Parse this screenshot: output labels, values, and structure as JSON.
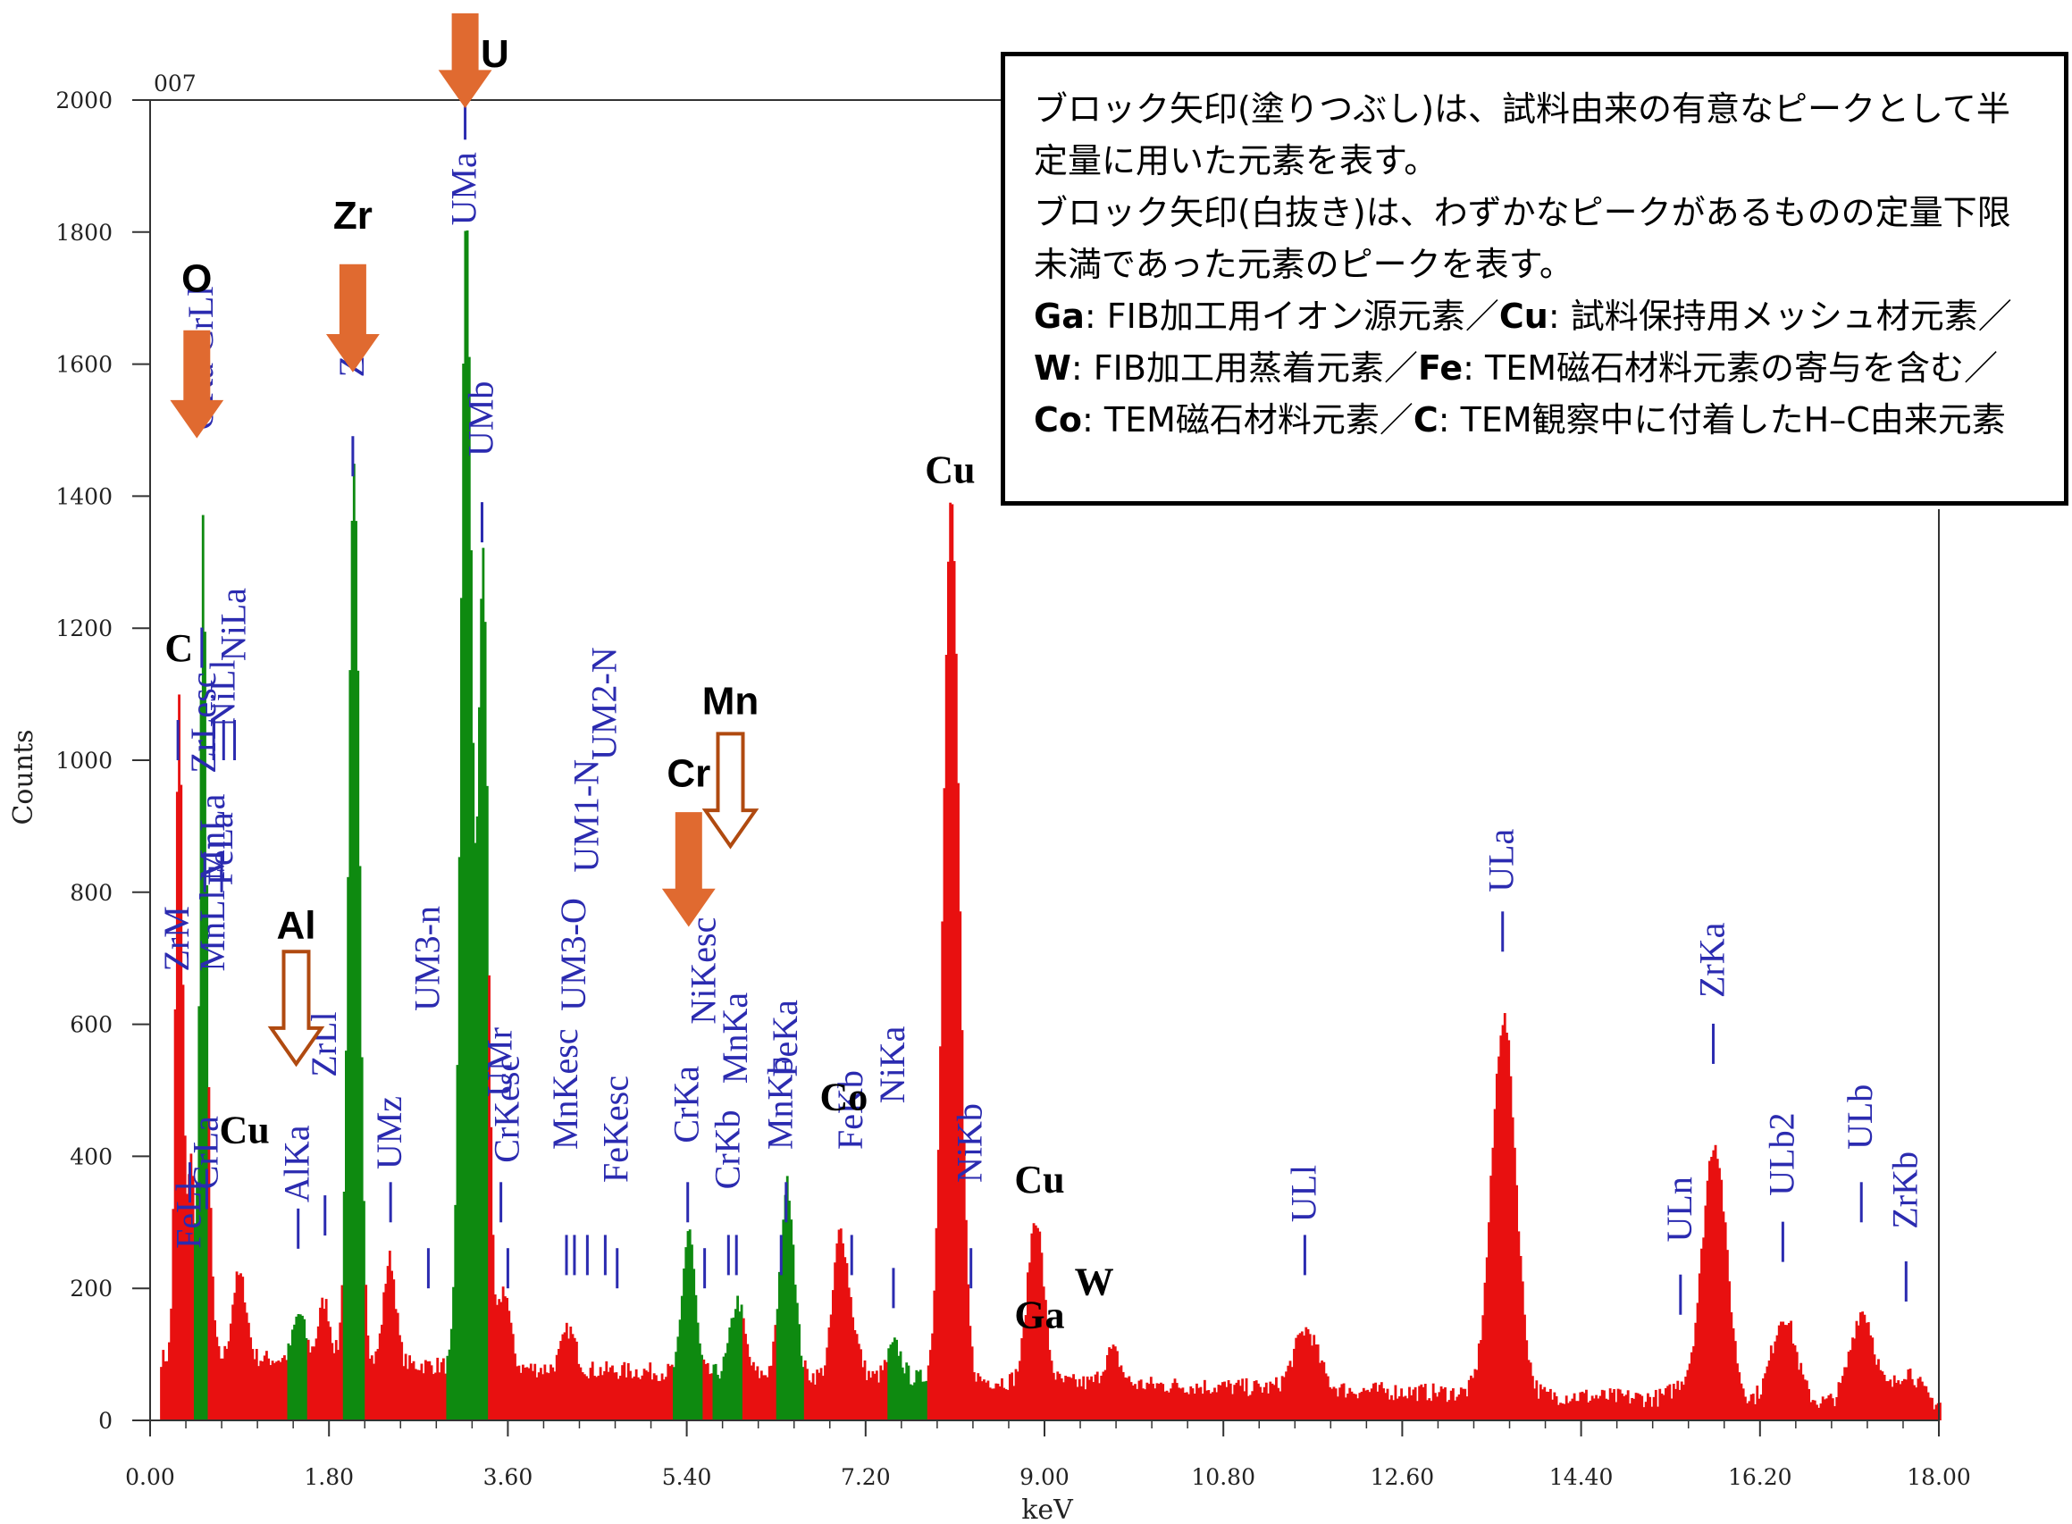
{
  "chart_data": {
    "type": "bar",
    "title": "007",
    "xlabel": "keV",
    "ylabel": "Counts",
    "xlim": [
      0,
      18
    ],
    "ylim": [
      0,
      2000
    ],
    "x_ticks": [
      "0.00",
      "1.80",
      "3.60",
      "5.40",
      "7.20",
      "9.00",
      "10.80",
      "12.60",
      "14.40",
      "16.20",
      "18.00"
    ],
    "y_ticks": [
      "0",
      "200",
      "400",
      "600",
      "800",
      "1000",
      "1200",
      "1400",
      "1600",
      "1800",
      "2000"
    ],
    "colors": {
      "spectrum": "#e81010",
      "roi": "#0e8a10",
      "line_marker": "#2b2bb0",
      "arrow": "#e06a30",
      "arrow_outline": "#b04a10"
    },
    "peaks": [
      {
        "x": 0.28,
        "y": 1000,
        "w": 0.035
      },
      {
        "x": 0.4,
        "y": 300,
        "w": 0.04
      },
      {
        "x": 0.52,
        "y": 1150,
        "w": 0.03
      },
      {
        "x": 0.57,
        "y": 250,
        "w": 0.04
      },
      {
        "x": 0.85,
        "y": 90,
        "w": 0.05
      },
      {
        "x": 0.93,
        "y": 80,
        "w": 0.05
      },
      {
        "x": 1.49,
        "y": 70,
        "w": 0.06
      },
      {
        "x": 1.74,
        "y": 90,
        "w": 0.06
      },
      {
        "x": 2.04,
        "y": 1350,
        "w": 0.055
      },
      {
        "x": 2.4,
        "y": 160,
        "w": 0.06
      },
      {
        "x": 3.17,
        "y": 1750,
        "w": 0.055
      },
      {
        "x": 3.34,
        "y": 1220,
        "w": 0.05
      },
      {
        "x": 3.55,
        "y": 120,
        "w": 0.06
      },
      {
        "x": 4.2,
        "y": 60,
        "w": 0.07
      },
      {
        "x": 5.41,
        "y": 220,
        "w": 0.06
      },
      {
        "x": 5.9,
        "y": 110,
        "w": 0.07
      },
      {
        "x": 6.4,
        "y": 290,
        "w": 0.07
      },
      {
        "x": 6.93,
        "y": 210,
        "w": 0.07
      },
      {
        "x": 7.06,
        "y": 60,
        "w": 0.07
      },
      {
        "x": 7.48,
        "y": 50,
        "w": 0.07
      },
      {
        "x": 8.05,
        "y": 1330,
        "w": 0.08
      },
      {
        "x": 8.9,
        "y": 250,
        "w": 0.08
      },
      {
        "x": 9.67,
        "y": 50,
        "w": 0.08
      },
      {
        "x": 11.62,
        "y": 90,
        "w": 0.12
      },
      {
        "x": 13.61,
        "y": 570,
        "w": 0.12
      },
      {
        "x": 15.4,
        "y": 20,
        "w": 0.1
      },
      {
        "x": 15.73,
        "y": 390,
        "w": 0.12
      },
      {
        "x": 16.43,
        "y": 130,
        "w": 0.12
      },
      {
        "x": 17.22,
        "y": 140,
        "w": 0.12
      },
      {
        "x": 17.67,
        "y": 50,
        "w": 0.12
      }
    ],
    "roi_bands": [
      [
        0.44,
        0.58
      ],
      [
        1.37,
        1.58
      ],
      [
        1.93,
        2.16
      ],
      [
        2.98,
        3.4
      ],
      [
        5.24,
        5.54
      ],
      [
        5.64,
        5.95
      ],
      [
        6.28,
        6.56
      ],
      [
        7.41,
        7.8
      ]
    ],
    "line_markers": [
      {
        "x": 0.28,
        "y": 1000,
        "label": "ZrM",
        "top": 680
      },
      {
        "x": 0.4,
        "y": 330,
        "label": "FeLl",
        "top": 260
      },
      {
        "x": 0.52,
        "y": 1140,
        "label": "OKa CrLl",
        "top": 1500
      },
      {
        "x": 0.55,
        "y": 800,
        "label": "ZrLesc",
        "top": 980
      },
      {
        "x": 0.57,
        "y": 320,
        "label": "CrLa",
        "top": 350
      },
      {
        "x": 0.64,
        "y": 1000,
        "label": "MnLl MnLa",
        "top": 680
      },
      {
        "x": 0.72,
        "y": 800,
        "label": "FeLa",
        "top": 810
      },
      {
        "x": 0.74,
        "y": 1000,
        "label": "NiLl",
        "top": 1050
      },
      {
        "x": 0.85,
        "y": 1000,
        "label": "NiLa",
        "top": 1150
      },
      {
        "x": 1.49,
        "y": 260,
        "label": "AlKa",
        "top": 330
      },
      {
        "x": 1.76,
        "y": 280,
        "label": "ZrLl",
        "top": 520
      },
      {
        "x": 2.04,
        "y": 1430,
        "label": "ZrLa",
        "top": 1580
      },
      {
        "x": 2.42,
        "y": 300,
        "label": "UMz",
        "top": 380
      },
      {
        "x": 2.8,
        "y": 200,
        "label": "UM3-n",
        "top": 620
      },
      {
        "x": 3.17,
        "y": 1940,
        "label": "UMa",
        "top": 1810
      },
      {
        "x": 3.34,
        "y": 1330,
        "label": "UMb",
        "top": 1460
      },
      {
        "x": 3.53,
        "y": 300,
        "label": "UMr",
        "top": 490
      },
      {
        "x": 3.6,
        "y": 200,
        "label": "CrKesc",
        "top": 390
      },
      {
        "x": 4.19,
        "y": 220,
        "label": "MnKesc",
        "top": 410
      },
      {
        "x": 4.27,
        "y": 220,
        "label": "UM3-O",
        "top": 620
      },
      {
        "x": 4.4,
        "y": 220,
        "label": "UM1-N",
        "top": 830
      },
      {
        "x": 4.58,
        "y": 220,
        "label": "UM2-N",
        "top": 1000
      },
      {
        "x": 4.7,
        "y": 200,
        "label": "FeKesc",
        "top": 360
      },
      {
        "x": 5.41,
        "y": 300,
        "label": "CrKa",
        "top": 420
      },
      {
        "x": 5.58,
        "y": 200,
        "label": "NiKesc",
        "top": 600
      },
      {
        "x": 5.82,
        "y": 220,
        "label": "CrKb",
        "top": 350
      },
      {
        "x": 5.9,
        "y": 220,
        "label": "MnKa",
        "top": 510
      },
      {
        "x": 6.35,
        "y": 220,
        "label": "MnKb",
        "top": 410
      },
      {
        "x": 6.4,
        "y": 300,
        "label": "FeKa",
        "top": 520
      },
      {
        "x": 7.06,
        "y": 220,
        "label": "FeKb",
        "top": 410
      },
      {
        "x": 7.48,
        "y": 170,
        "label": "NiKa",
        "top": 480
      },
      {
        "x": 8.26,
        "y": 200,
        "label": "NiKb",
        "top": 360
      },
      {
        "x": 11.62,
        "y": 220,
        "label": "ULl",
        "top": 300
      },
      {
        "x": 13.61,
        "y": 710,
        "label": "ULa",
        "top": 800
      },
      {
        "x": 15.4,
        "y": 160,
        "label": "ULn",
        "top": 270
      },
      {
        "x": 15.73,
        "y": 540,
        "label": "ZrKa",
        "top": 640
      },
      {
        "x": 16.43,
        "y": 240,
        "label": "ULb2",
        "top": 340
      },
      {
        "x": 17.22,
        "y": 300,
        "label": "ULb",
        "top": 410
      },
      {
        "x": 17.67,
        "y": 180,
        "label": "ZrKb",
        "top": 290
      }
    ],
    "element_annotations": [
      {
        "label": "O",
        "x": 0.47,
        "y": 1710,
        "style": "sans"
      },
      {
        "label": "Zr",
        "x": 2.04,
        "y": 1805,
        "style": "sans"
      },
      {
        "label": "U",
        "x": 3.47,
        "y": 2050,
        "style": "sans"
      },
      {
        "label": "C",
        "x": 0.29,
        "y": 1150,
        "style": "serif"
      },
      {
        "label": "Cu",
        "x": 0.95,
        "y": 420,
        "style": "serif"
      },
      {
        "label": "Al",
        "x": 1.47,
        "y": 730,
        "style": "sans"
      },
      {
        "label": "Mn",
        "x": 5.84,
        "y": 1070,
        "style": "sans"
      },
      {
        "label": "Cr",
        "x": 5.42,
        "y": 960,
        "style": "sans"
      },
      {
        "label": "Co",
        "x": 6.98,
        "y": 470,
        "style": "serif"
      },
      {
        "label": "Cu",
        "x": 8.05,
        "y": 1420,
        "style": "serif"
      },
      {
        "label": "Cu",
        "x": 8.95,
        "y": 345,
        "style": "serif"
      },
      {
        "label": "Ga",
        "x": 8.95,
        "y": 140,
        "style": "serif"
      },
      {
        "label": "W",
        "x": 9.5,
        "y": 190,
        "style": "serif"
      }
    ],
    "arrows": [
      {
        "element": "O",
        "x": 0.47,
        "from": 1650,
        "to": 1490,
        "filled": true
      },
      {
        "element": "Zr",
        "x": 2.04,
        "from": 1750,
        "to": 1590,
        "filled": true
      },
      {
        "element": "U",
        "x": 3.17,
        "from": 2130,
        "to": 1990,
        "filled": true
      },
      {
        "element": "Cr",
        "x": 5.42,
        "from": 920,
        "to": 750,
        "filled": true
      },
      {
        "element": "Al",
        "x": 1.47,
        "from": 710,
        "to": 540,
        "filled": false
      },
      {
        "element": "Mn",
        "x": 5.84,
        "from": 1040,
        "to": 870,
        "filled": false
      }
    ]
  },
  "note": {
    "line1": "ブロック矢印(塗りつぶし)は、試料由来の有意なピークとして半定量に用いた元素を表す。",
    "line2": "ブロック矢印(白抜き)は、わずかなピークがあるものの定量下限未満であった元素のピークを表す。",
    "items": [
      {
        "el": "Ga",
        "text": ": FIB加工用イオン源元素／"
      },
      {
        "el": "Cu",
        "text": ": 試料保持用メッシュ材元素／"
      },
      {
        "el": "W",
        "text": ": FIB加工用蒸着元素／"
      },
      {
        "el": "Fe",
        "text": ": TEM磁石材料元素の寄与を含む／"
      },
      {
        "el": "Co",
        "text": ": TEM磁石材料元素／"
      },
      {
        "el": "C",
        "text": ": TEM観察中に付着したH–C由来元素"
      }
    ]
  }
}
